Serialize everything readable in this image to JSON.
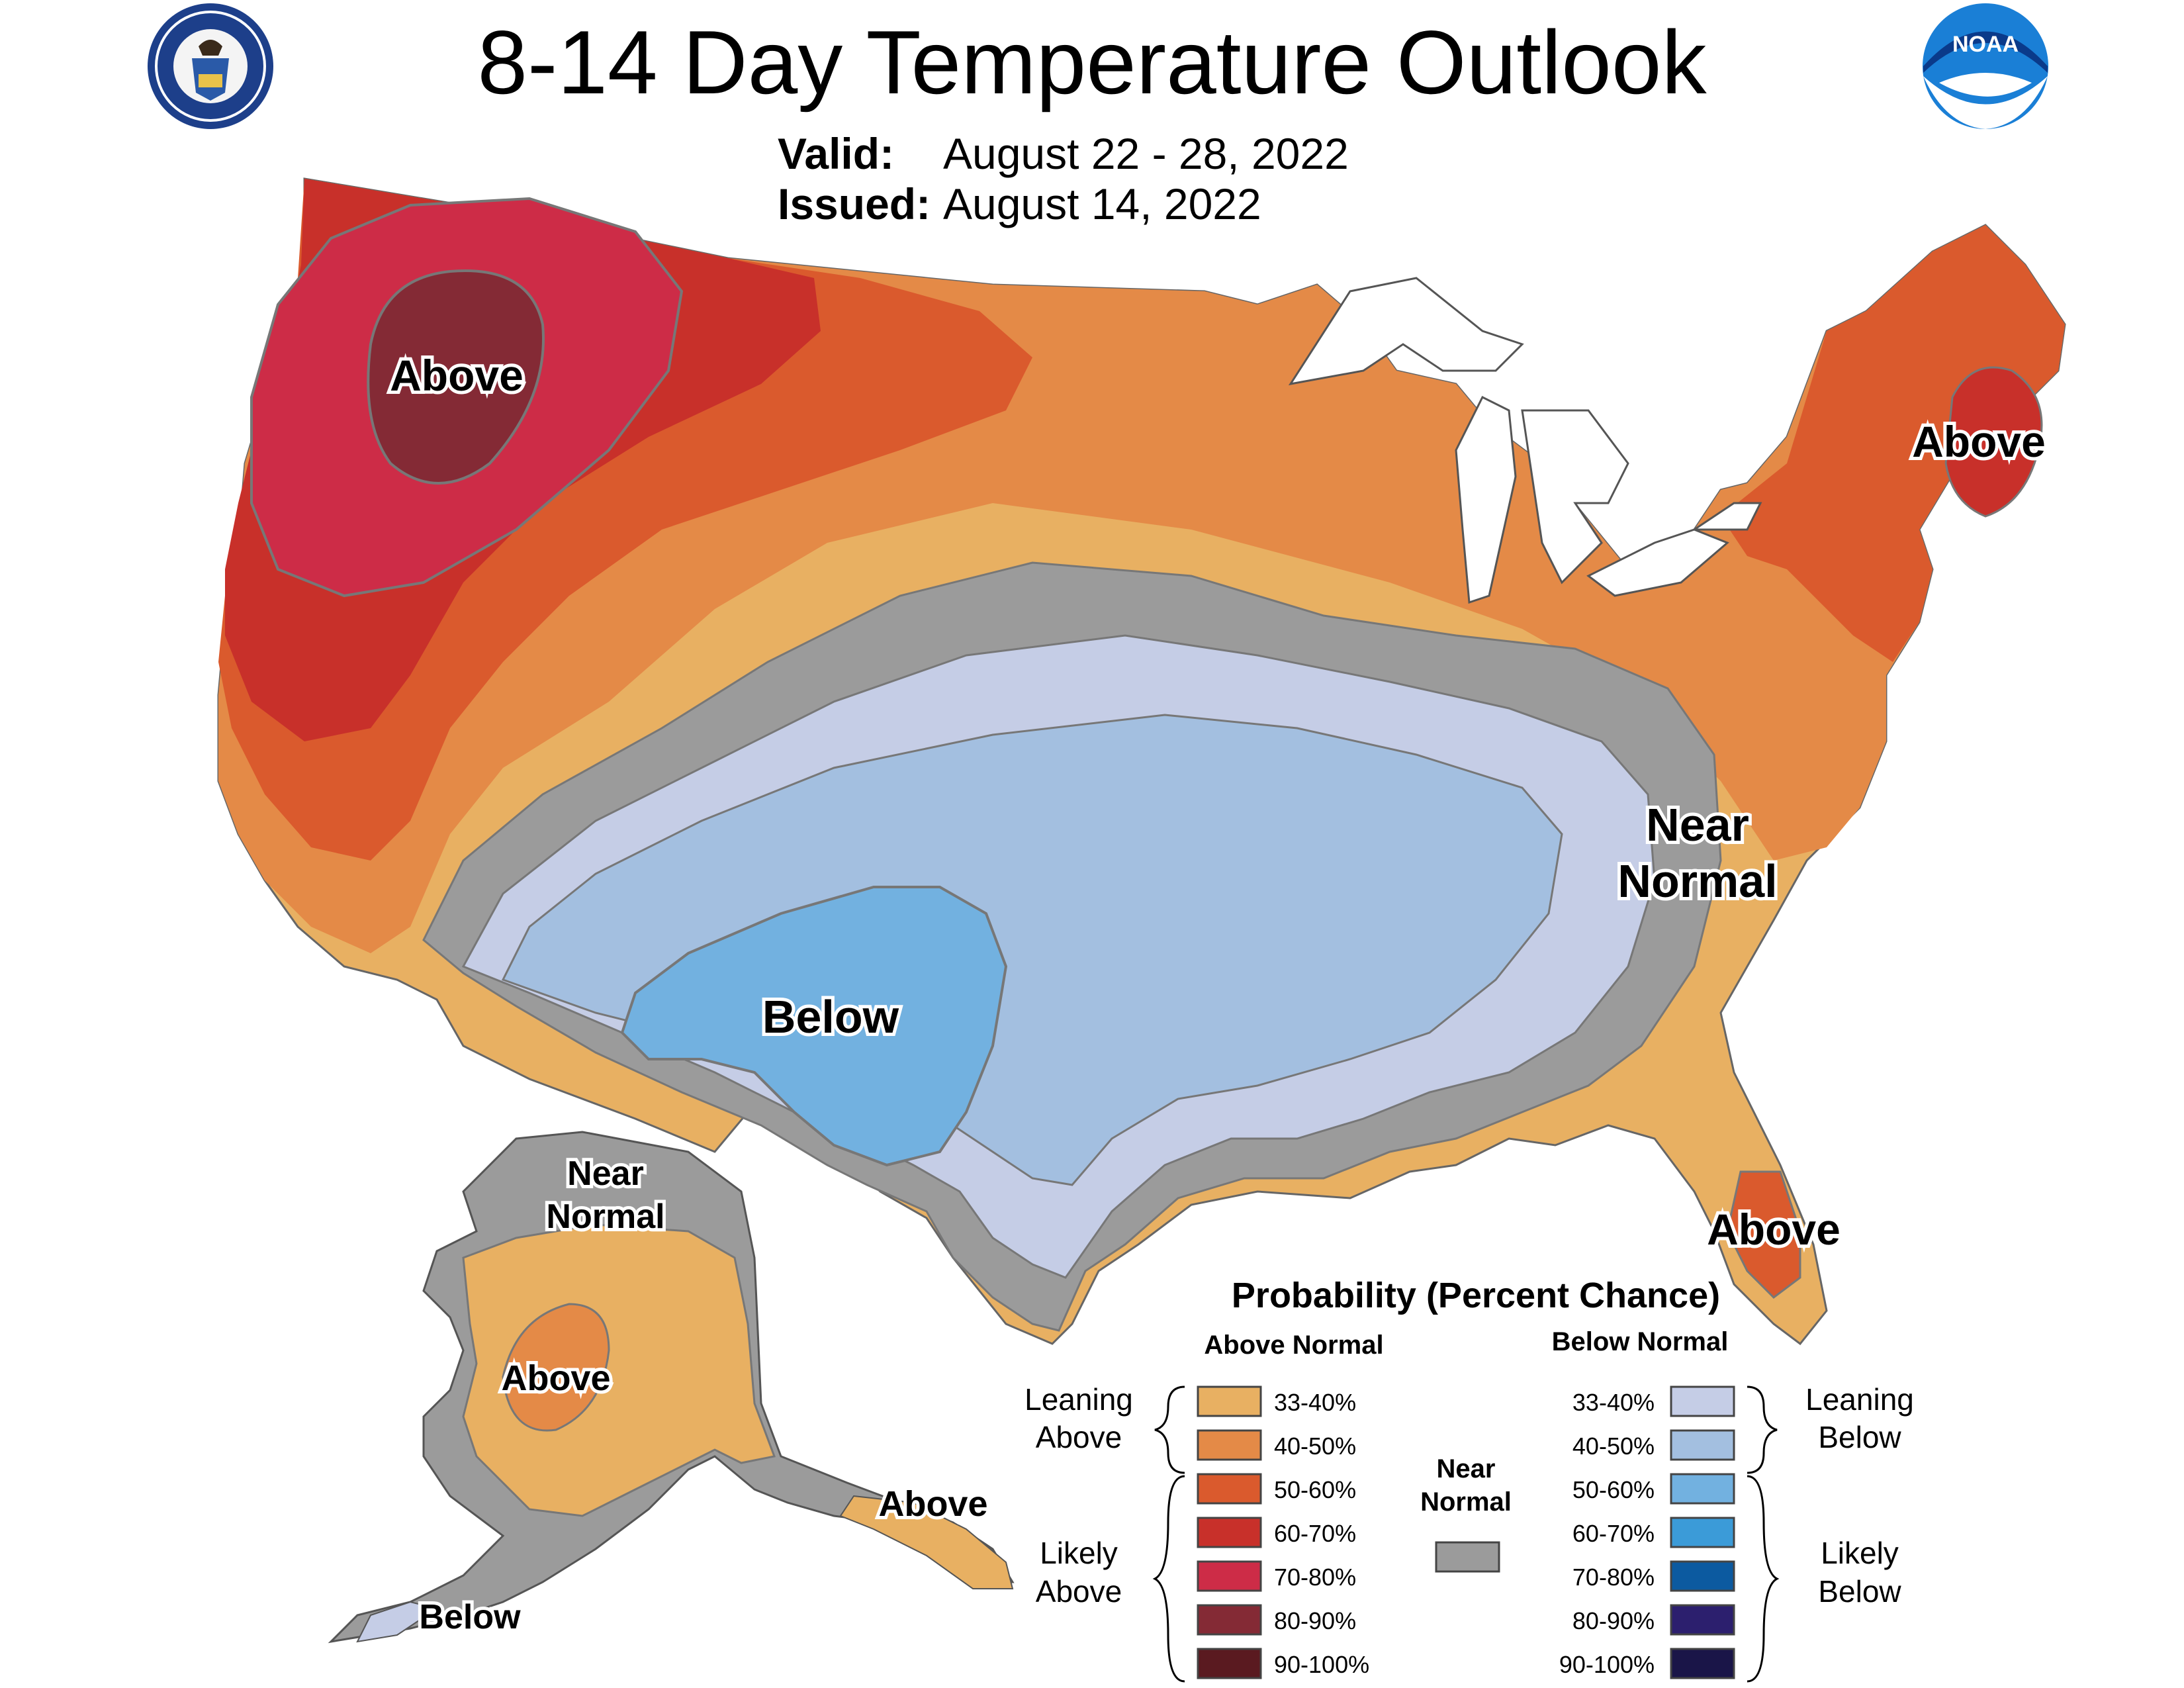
{
  "title": "8-14 Day Temperature Outlook",
  "valid_label": "Valid:",
  "valid_dates": "August 22 - 28, 2022",
  "issued_label": "Issued:",
  "issued_date": "August 14, 2022",
  "logos": {
    "left": "doc-seal-icon",
    "right": "noaa-logo-icon",
    "noaa_text": "NOAA"
  },
  "map_labels": {
    "above_northwest": "Above",
    "above_northeast": "Above",
    "above_florida": "Above",
    "below_southwest": "Below",
    "near_normal_east_line1": "Near",
    "near_normal_east_line2": "Normal",
    "alaska_near_line1": "Near",
    "alaska_near_line2": "Normal",
    "alaska_above_interior": "Above",
    "alaska_above_southeast": "Above",
    "alaska_below_aleutians": "Below"
  },
  "legend": {
    "title": "Probability (Percent Chance)",
    "above_header": "Above Normal",
    "below_header": "Below Normal",
    "leaning_above": [
      "Leaning",
      "Above"
    ],
    "likely_above": [
      "Likely",
      "Above"
    ],
    "leaning_below": [
      "Leaning",
      "Below"
    ],
    "likely_below": [
      "Likely",
      "Below"
    ],
    "near_normal": [
      "Near",
      "Normal"
    ],
    "near_normal_color": "#9b9b9b",
    "above": [
      {
        "label": "33-40%",
        "color": "#e8b062"
      },
      {
        "label": "40-50%",
        "color": "#e48a47"
      },
      {
        "label": "50-60%",
        "color": "#da5a2d"
      },
      {
        "label": "60-70%",
        "color": "#c8302a"
      },
      {
        "label": "70-80%",
        "color": "#cd2c47"
      },
      {
        "label": "80-90%",
        "color": "#842a35"
      },
      {
        "label": "90-100%",
        "color": "#5a1a20"
      }
    ],
    "below": [
      {
        "label": "33-40%",
        "color": "#c5cde6"
      },
      {
        "label": "40-50%",
        "color": "#a3bfe0"
      },
      {
        "label": "50-60%",
        "color": "#72b1e0"
      },
      {
        "label": "60-70%",
        "color": "#3b9bd8"
      },
      {
        "label": "70-80%",
        "color": "#0c5aa0"
      },
      {
        "label": "80-90%",
        "color": "#2c1f6e"
      },
      {
        "label": "90-100%",
        "color": "#1a1548"
      }
    ]
  }
}
